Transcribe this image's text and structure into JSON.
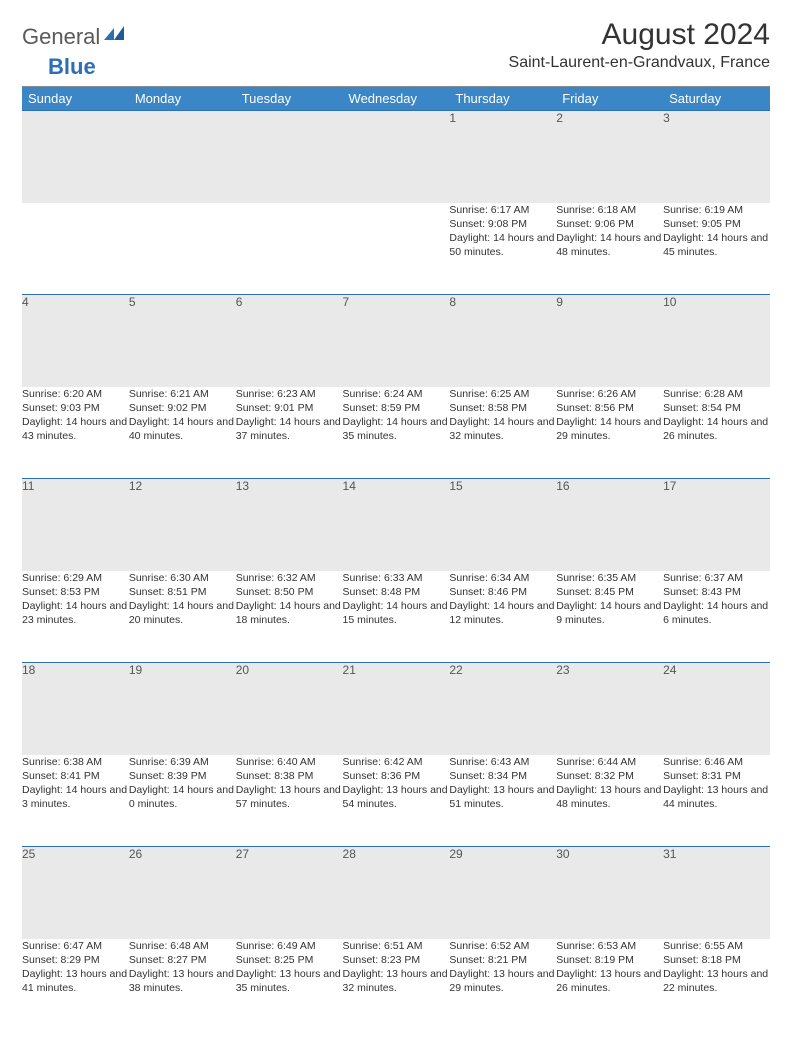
{
  "brand": {
    "part1": "General",
    "part2": "Blue"
  },
  "title": "August 2024",
  "location": "Saint-Laurent-en-Grandvaux, France",
  "colors": {
    "header_bg": "#3b86c6",
    "header_text": "#ffffff",
    "daynum_bg": "#e9e9e9",
    "row_divider": "#2d6fb5",
    "logo_gray": "#5a5a5a",
    "logo_blue": "#2d6fb5",
    "body_text": "#333333"
  },
  "weekdays": [
    "Sunday",
    "Monday",
    "Tuesday",
    "Wednesday",
    "Thursday",
    "Friday",
    "Saturday"
  ],
  "weeks": [
    [
      null,
      null,
      null,
      null,
      {
        "d": "1",
        "sr": "6:17 AM",
        "ss": "9:08 PM",
        "dl": "14 hours and 50 minutes."
      },
      {
        "d": "2",
        "sr": "6:18 AM",
        "ss": "9:06 PM",
        "dl": "14 hours and 48 minutes."
      },
      {
        "d": "3",
        "sr": "6:19 AM",
        "ss": "9:05 PM",
        "dl": "14 hours and 45 minutes."
      }
    ],
    [
      {
        "d": "4",
        "sr": "6:20 AM",
        "ss": "9:03 PM",
        "dl": "14 hours and 43 minutes."
      },
      {
        "d": "5",
        "sr": "6:21 AM",
        "ss": "9:02 PM",
        "dl": "14 hours and 40 minutes."
      },
      {
        "d": "6",
        "sr": "6:23 AM",
        "ss": "9:01 PM",
        "dl": "14 hours and 37 minutes."
      },
      {
        "d": "7",
        "sr": "6:24 AM",
        "ss": "8:59 PM",
        "dl": "14 hours and 35 minutes."
      },
      {
        "d": "8",
        "sr": "6:25 AM",
        "ss": "8:58 PM",
        "dl": "14 hours and 32 minutes."
      },
      {
        "d": "9",
        "sr": "6:26 AM",
        "ss": "8:56 PM",
        "dl": "14 hours and 29 minutes."
      },
      {
        "d": "10",
        "sr": "6:28 AM",
        "ss": "8:54 PM",
        "dl": "14 hours and 26 minutes."
      }
    ],
    [
      {
        "d": "11",
        "sr": "6:29 AM",
        "ss": "8:53 PM",
        "dl": "14 hours and 23 minutes."
      },
      {
        "d": "12",
        "sr": "6:30 AM",
        "ss": "8:51 PM",
        "dl": "14 hours and 20 minutes."
      },
      {
        "d": "13",
        "sr": "6:32 AM",
        "ss": "8:50 PM",
        "dl": "14 hours and 18 minutes."
      },
      {
        "d": "14",
        "sr": "6:33 AM",
        "ss": "8:48 PM",
        "dl": "14 hours and 15 minutes."
      },
      {
        "d": "15",
        "sr": "6:34 AM",
        "ss": "8:46 PM",
        "dl": "14 hours and 12 minutes."
      },
      {
        "d": "16",
        "sr": "6:35 AM",
        "ss": "8:45 PM",
        "dl": "14 hours and 9 minutes."
      },
      {
        "d": "17",
        "sr": "6:37 AM",
        "ss": "8:43 PM",
        "dl": "14 hours and 6 minutes."
      }
    ],
    [
      {
        "d": "18",
        "sr": "6:38 AM",
        "ss": "8:41 PM",
        "dl": "14 hours and 3 minutes."
      },
      {
        "d": "19",
        "sr": "6:39 AM",
        "ss": "8:39 PM",
        "dl": "14 hours and 0 minutes."
      },
      {
        "d": "20",
        "sr": "6:40 AM",
        "ss": "8:38 PM",
        "dl": "13 hours and 57 minutes."
      },
      {
        "d": "21",
        "sr": "6:42 AM",
        "ss": "8:36 PM",
        "dl": "13 hours and 54 minutes."
      },
      {
        "d": "22",
        "sr": "6:43 AM",
        "ss": "8:34 PM",
        "dl": "13 hours and 51 minutes."
      },
      {
        "d": "23",
        "sr": "6:44 AM",
        "ss": "8:32 PM",
        "dl": "13 hours and 48 minutes."
      },
      {
        "d": "24",
        "sr": "6:46 AM",
        "ss": "8:31 PM",
        "dl": "13 hours and 44 minutes."
      }
    ],
    [
      {
        "d": "25",
        "sr": "6:47 AM",
        "ss": "8:29 PM",
        "dl": "13 hours and 41 minutes."
      },
      {
        "d": "26",
        "sr": "6:48 AM",
        "ss": "8:27 PM",
        "dl": "13 hours and 38 minutes."
      },
      {
        "d": "27",
        "sr": "6:49 AM",
        "ss": "8:25 PM",
        "dl": "13 hours and 35 minutes."
      },
      {
        "d": "28",
        "sr": "6:51 AM",
        "ss": "8:23 PM",
        "dl": "13 hours and 32 minutes."
      },
      {
        "d": "29",
        "sr": "6:52 AM",
        "ss": "8:21 PM",
        "dl": "13 hours and 29 minutes."
      },
      {
        "d": "30",
        "sr": "6:53 AM",
        "ss": "8:19 PM",
        "dl": "13 hours and 26 minutes."
      },
      {
        "d": "31",
        "sr": "6:55 AM",
        "ss": "8:18 PM",
        "dl": "13 hours and 22 minutes."
      }
    ]
  ],
  "labels": {
    "sunrise": "Sunrise:",
    "sunset": "Sunset:",
    "daylight": "Daylight:"
  }
}
